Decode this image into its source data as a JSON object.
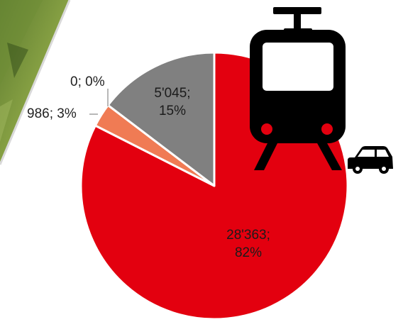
{
  "chart_data": {
    "type": "pie",
    "start_angle_deg": 0,
    "direction": "clockwise",
    "slices": [
      {
        "value": 28363,
        "label_value": "28'363;",
        "label_pct": "82%",
        "color": "#e3000f"
      },
      {
        "value": 986,
        "label_value": "986; 3%",
        "label_pct": "",
        "color": "#f07b54"
      },
      {
        "value": 0,
        "label_value": "0; 0%",
        "label_pct": "",
        "color": "#a8a8a8"
      },
      {
        "value": 5045,
        "label_value": "5'045;",
        "label_pct": "15%",
        "color": "#808080"
      }
    ]
  },
  "icons": {
    "train": "tram-icon",
    "car": "car-icon",
    "photo": "landscape-photo"
  },
  "colors": {
    "train_red_light": "#e3000f",
    "icon_black": "#000000",
    "separator": "#ffffff"
  }
}
